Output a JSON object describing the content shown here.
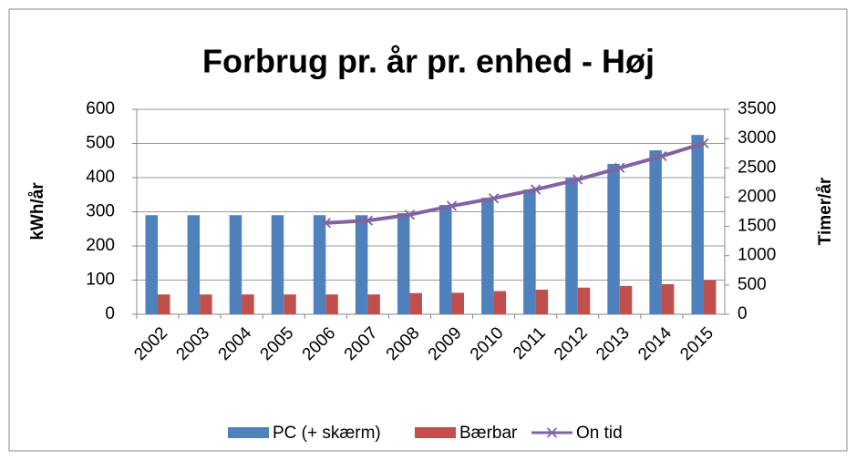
{
  "chart_data": {
    "type": "bar",
    "title": "Forbrug pr. år pr. enhed - Høj",
    "y_label": "kWh/år",
    "y2_label": "Timer/år",
    "categories": [
      "2002",
      "2003",
      "2004",
      "2005",
      "2006",
      "2007",
      "2008",
      "2009",
      "2010",
      "2011",
      "2012",
      "2013",
      "2014",
      "2015"
    ],
    "series": [
      {
        "name": "PC (+ skærm)",
        "color": "#4f81bd",
        "type": "bar",
        "values": [
          290,
          290,
          290,
          290,
          290,
          290,
          296,
          320,
          341,
          365,
          400,
          440,
          480,
          525
        ]
      },
      {
        "name": "Bærbar",
        "color": "#c0504d",
        "type": "bar",
        "values": [
          58,
          58,
          58,
          58,
          58,
          58,
          62,
          63,
          68,
          72,
          78,
          83,
          88,
          100
        ]
      },
      {
        "name": "On tid",
        "color": "#8064a2",
        "type": "line",
        "axis": "y2",
        "values": [
          null,
          null,
          null,
          null,
          1560,
          1600,
          1700,
          1850,
          1980,
          2130,
          2300,
          2500,
          2700,
          2920
        ]
      }
    ],
    "ylim": [
      0,
      600
    ],
    "yticks": [
      0,
      100,
      200,
      300,
      400,
      500,
      600
    ],
    "y2lim": [
      0,
      3500
    ],
    "y2ticks": [
      0,
      500,
      1000,
      1500,
      2000,
      2500,
      3000,
      3500
    ],
    "grid": true,
    "legend": "bottom"
  }
}
